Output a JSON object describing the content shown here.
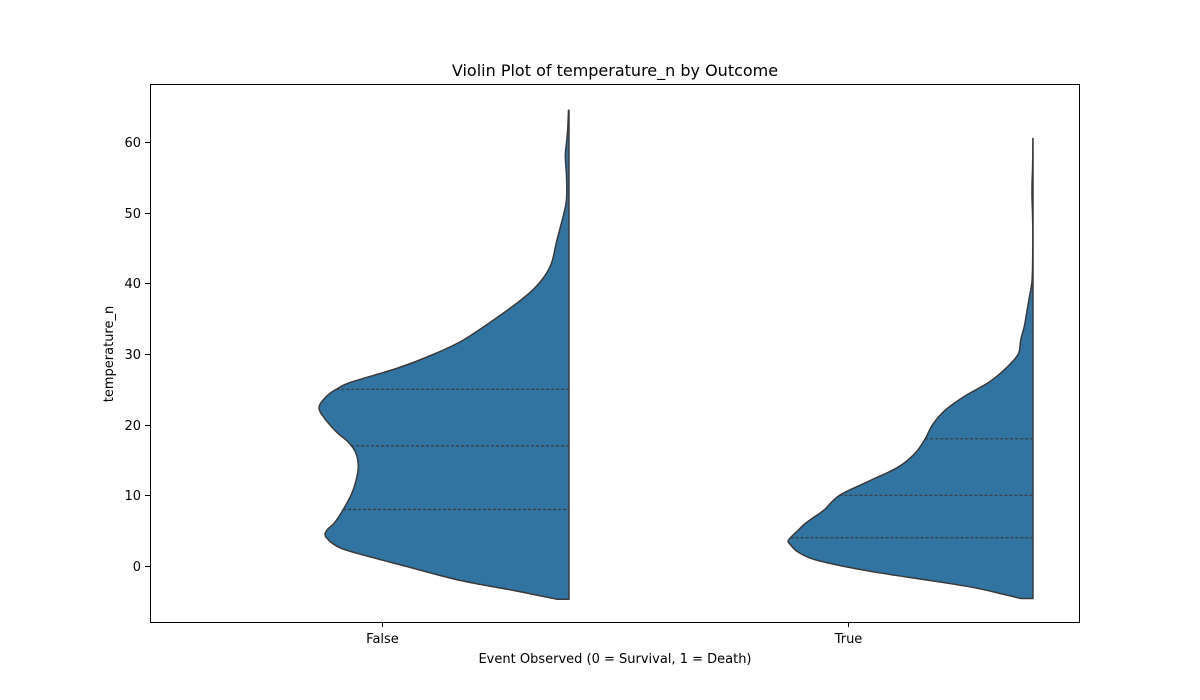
{
  "chart_data": {
    "type": "violin",
    "title": "Violin Plot of temperature_n by Outcome",
    "xlabel": "Event Observed (0 = Survival, 1 = Death)",
    "ylabel": "temperature_n",
    "categories": [
      "False",
      "True"
    ],
    "ylim": [
      -8,
      68
    ],
    "yticks": [
      0,
      10,
      20,
      30,
      40,
      50,
      60
    ],
    "split": "left-half",
    "color": "#3274a1",
    "edge_color": "#3a3a3a",
    "grid": false,
    "violins": [
      {
        "category": "False",
        "y_min": -4.7,
        "y_max": 64.5,
        "quartiles": [
          8,
          17,
          25
        ],
        "profile": [
          [
            -4.7,
            0.05
          ],
          [
            -3.5,
            0.22
          ],
          [
            -2,
            0.45
          ],
          [
            0,
            0.67
          ],
          [
            1,
            0.78
          ],
          [
            2.5,
            0.93
          ],
          [
            4,
            0.99
          ],
          [
            5,
            0.99
          ],
          [
            6,
            0.96
          ],
          [
            7.5,
            0.93
          ],
          [
            10,
            0.89
          ],
          [
            12,
            0.87
          ],
          [
            14,
            0.86
          ],
          [
            16,
            0.87
          ],
          [
            17.5,
            0.9
          ],
          [
            19,
            0.95
          ],
          [
            21,
            1.0
          ],
          [
            22.5,
            1.02
          ],
          [
            24,
            0.99
          ],
          [
            25,
            0.95
          ],
          [
            26,
            0.89
          ],
          [
            28,
            0.7
          ],
          [
            30,
            0.55
          ],
          [
            32,
            0.43
          ],
          [
            35,
            0.3
          ],
          [
            37,
            0.22
          ],
          [
            39,
            0.15
          ],
          [
            41,
            0.1
          ],
          [
            43,
            0.07
          ],
          [
            46,
            0.05
          ],
          [
            50,
            0.02
          ],
          [
            52,
            0.01
          ],
          [
            55,
            0.01
          ],
          [
            58,
            0.015
          ],
          [
            60,
            0.01
          ],
          [
            62,
            0.005
          ],
          [
            64.5,
            0.002
          ]
        ]
      },
      {
        "category": "True",
        "y_min": -4.6,
        "y_max": 60.5,
        "quartiles": [
          4,
          10,
          18
        ],
        "profile": [
          [
            -4.6,
            0.05
          ],
          [
            -4,
            0.12
          ],
          [
            -3,
            0.25
          ],
          [
            -2,
            0.43
          ],
          [
            -1,
            0.62
          ],
          [
            0,
            0.78
          ],
          [
            1,
            0.9
          ],
          [
            2,
            0.96
          ],
          [
            3,
            0.99
          ],
          [
            3.5,
            1.0
          ],
          [
            4,
            0.99
          ],
          [
            5,
            0.96
          ],
          [
            6,
            0.93
          ],
          [
            7,
            0.89
          ],
          [
            8,
            0.85
          ],
          [
            10,
            0.79
          ],
          [
            12,
            0.67
          ],
          [
            14,
            0.55
          ],
          [
            16,
            0.48
          ],
          [
            18,
            0.44
          ],
          [
            20,
            0.41
          ],
          [
            22,
            0.36
          ],
          [
            24,
            0.28
          ],
          [
            26,
            0.18
          ],
          [
            28,
            0.11
          ],
          [
            30,
            0.06
          ],
          [
            32,
            0.05
          ],
          [
            34,
            0.035
          ],
          [
            36,
            0.025
          ],
          [
            38,
            0.015
          ],
          [
            40,
            0.005
          ],
          [
            42,
            0.002
          ],
          [
            45,
            0.001
          ],
          [
            48,
            0.001
          ],
          [
            50,
            0.002
          ],
          [
            52,
            0.004
          ],
          [
            54,
            0.004
          ],
          [
            56,
            0.002
          ],
          [
            58,
            0.001
          ],
          [
            60.5,
            0.0005
          ]
        ]
      }
    ]
  }
}
